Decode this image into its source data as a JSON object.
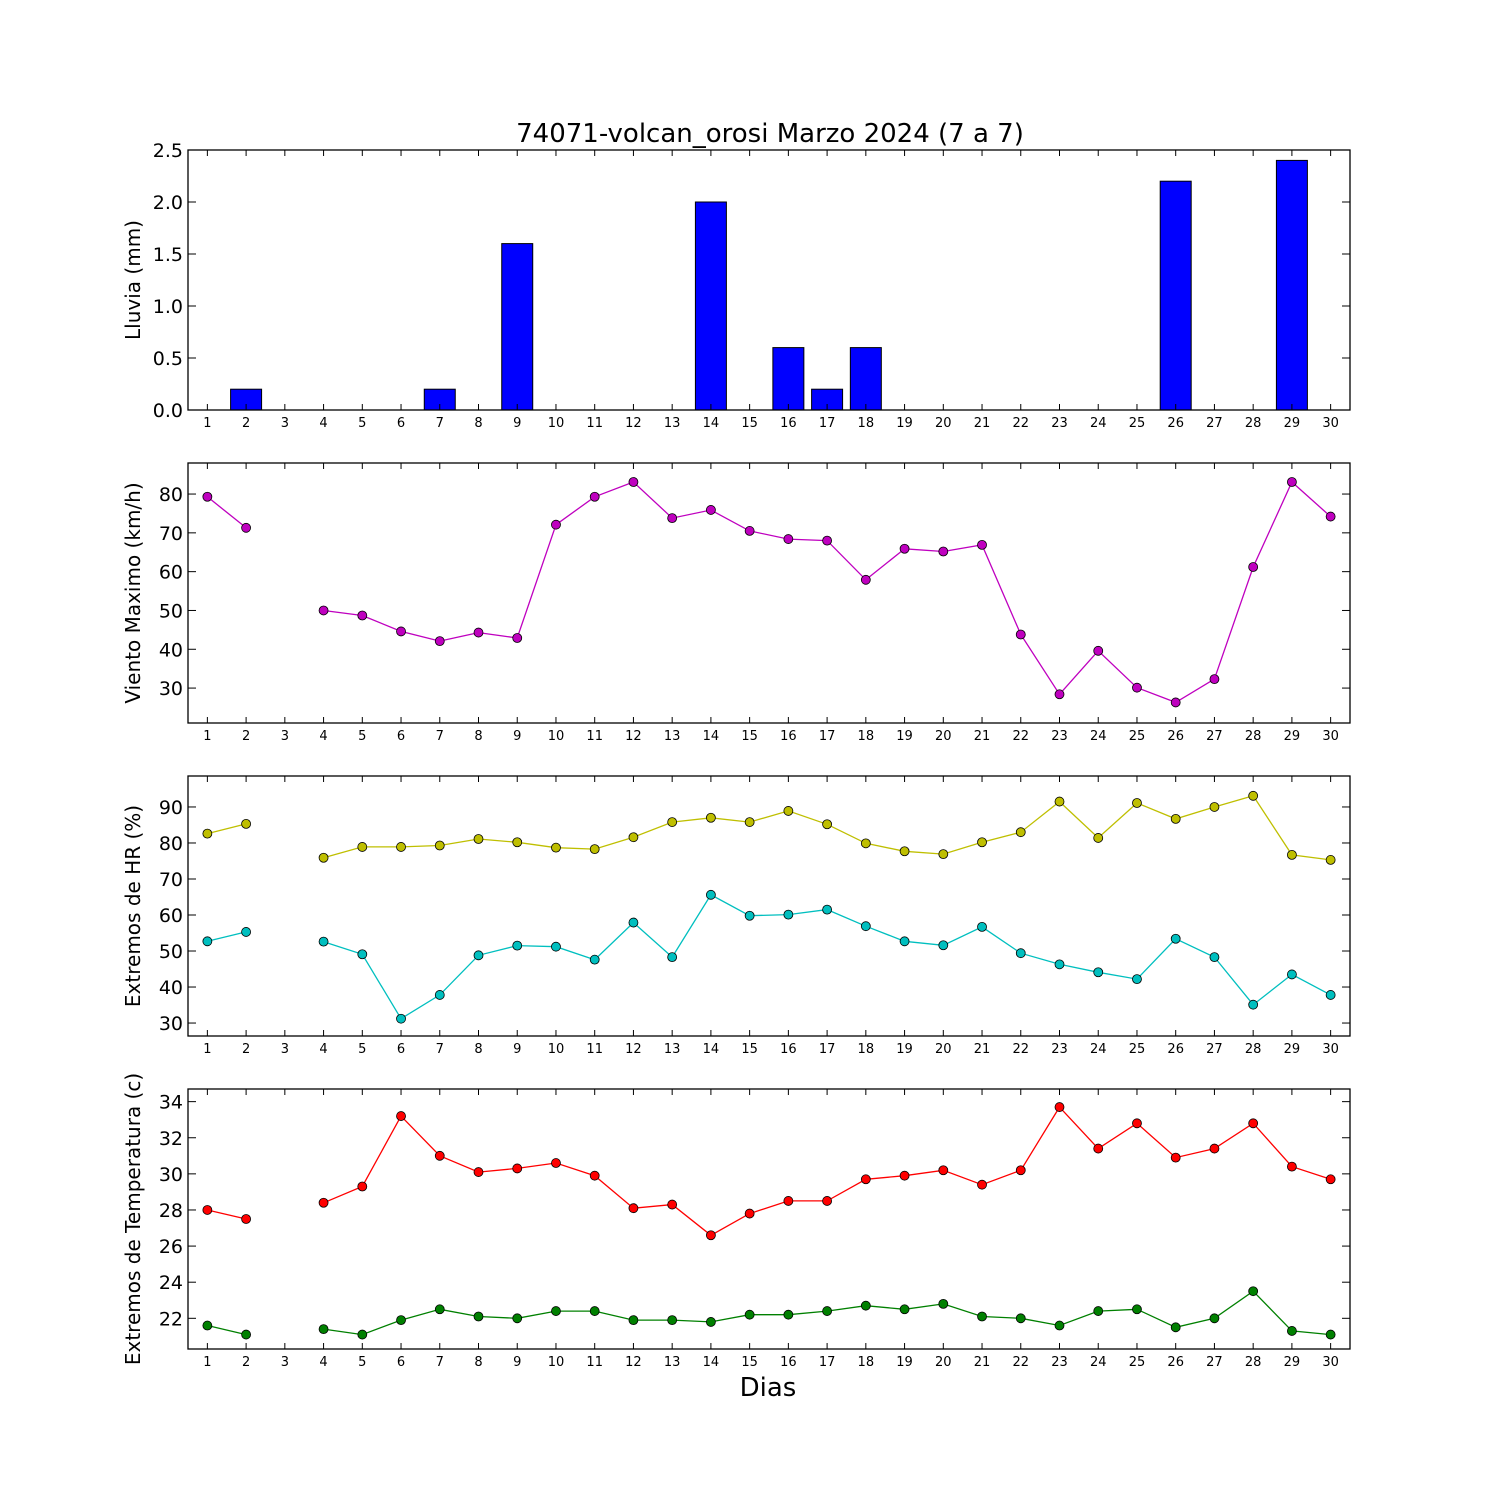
{
  "title": "74071-volcan_orosi Marzo 2024  (7 a 7)",
  "xlabel": "Dias",
  "colors": {
    "bar": "#0000ff",
    "wind": "#bf00bf",
    "hr_max": "#bfbf00",
    "hr_min": "#00bfbf",
    "t_max": "#ff0000",
    "t_min": "#008000"
  },
  "chart_data": [
    {
      "type": "bar",
      "ylabel": "Lluvia (mm)",
      "x": [
        1,
        2,
        3,
        4,
        5,
        6,
        7,
        8,
        9,
        10,
        11,
        12,
        13,
        14,
        15,
        16,
        17,
        18,
        19,
        20,
        21,
        22,
        23,
        24,
        25,
        26,
        27,
        28,
        29,
        30
      ],
      "ylim": [
        0,
        2.5
      ],
      "yticks": [
        "0.0",
        "0.5",
        "1.0",
        "1.5",
        "2.0",
        "2.5"
      ],
      "series": [
        {
          "values": [
            0,
            0.2,
            null,
            0,
            0,
            0,
            0.2,
            0,
            1.6,
            0,
            0,
            0,
            0,
            2.0,
            0,
            0.6,
            0.2,
            0.6,
            0,
            0,
            0,
            0,
            0,
            0,
            0,
            2.2,
            0,
            0,
            2.4,
            0
          ]
        }
      ]
    },
    {
      "type": "line",
      "ylabel": "Viento Maximo (km/h)",
      "x": [
        1,
        2,
        3,
        4,
        5,
        6,
        7,
        8,
        9,
        10,
        11,
        12,
        13,
        14,
        15,
        16,
        17,
        18,
        19,
        20,
        21,
        22,
        23,
        24,
        25,
        26,
        27,
        28,
        29,
        30
      ],
      "ylim": [
        21,
        88
      ],
      "yticks": [
        "30",
        "40",
        "50",
        "60",
        "70",
        "80"
      ],
      "series": [
        {
          "values": [
            79.3,
            71.3,
            null,
            50.0,
            48.7,
            44.6,
            42.1,
            44.3,
            42.9,
            72.1,
            79.3,
            83.1,
            73.8,
            75.9,
            70.5,
            68.4,
            68.0,
            57.9,
            65.9,
            65.2,
            66.9,
            43.8,
            28.4,
            39.6,
            30.1,
            26.3,
            32.3,
            61.2,
            83.1,
            74.2
          ]
        }
      ]
    },
    {
      "type": "line",
      "ylabel": "Extremos de HR (%)",
      "x": [
        1,
        2,
        3,
        4,
        5,
        6,
        7,
        8,
        9,
        10,
        11,
        12,
        13,
        14,
        15,
        16,
        17,
        18,
        19,
        20,
        21,
        22,
        23,
        24,
        25,
        26,
        27,
        28,
        29,
        30
      ],
      "ylim": [
        26.4,
        98.6
      ],
      "yticks": [
        "30",
        "40",
        "50",
        "60",
        "70",
        "80",
        "90"
      ],
      "series": [
        {
          "values": [
            82.6,
            85.3,
            null,
            75.9,
            78.9,
            78.9,
            79.3,
            81.1,
            80.2,
            78.7,
            78.3,
            81.6,
            85.8,
            87.0,
            85.8,
            88.9,
            85.2,
            79.9,
            77.7,
            76.9,
            80.2,
            83.0,
            91.5,
            81.4,
            91.1,
            86.7,
            90.0,
            93.1,
            76.7,
            75.3
          ]
        },
        {
          "values": [
            52.7,
            55.3,
            null,
            52.6,
            49.1,
            31.2,
            37.8,
            48.8,
            51.5,
            51.2,
            47.6,
            57.9,
            48.3,
            65.6,
            59.8,
            60.1,
            61.5,
            56.9,
            52.7,
            51.6,
            56.7,
            49.4,
            46.3,
            44.1,
            42.2,
            53.4,
            48.3,
            35.1,
            43.5,
            37.8
          ]
        }
      ]
    },
    {
      "type": "line",
      "ylabel": "Extremos de Temperatura (c)",
      "x": [
        1,
        2,
        3,
        4,
        5,
        6,
        7,
        8,
        9,
        10,
        11,
        12,
        13,
        14,
        15,
        16,
        17,
        18,
        19,
        20,
        21,
        22,
        23,
        24,
        25,
        26,
        27,
        28,
        29,
        30
      ],
      "ylim": [
        20.3,
        34.7
      ],
      "yticks": [
        "22",
        "24",
        "26",
        "28",
        "30",
        "32",
        "34"
      ],
      "series": [
        {
          "values": [
            28.0,
            27.5,
            null,
            28.4,
            29.3,
            33.2,
            31.0,
            30.1,
            30.3,
            30.6,
            29.9,
            28.1,
            28.3,
            26.6,
            27.8,
            28.5,
            28.5,
            29.7,
            29.9,
            30.2,
            29.4,
            30.2,
            33.7,
            31.4,
            32.8,
            30.9,
            31.4,
            32.8,
            30.4,
            29.7
          ]
        },
        {
          "values": [
            21.6,
            21.1,
            null,
            21.4,
            21.1,
            21.9,
            22.5,
            22.1,
            22.0,
            22.4,
            22.4,
            21.9,
            21.9,
            21.8,
            22.2,
            22.2,
            22.4,
            22.7,
            22.5,
            22.8,
            22.1,
            22.0,
            21.6,
            22.4,
            22.5,
            21.5,
            22.0,
            23.5,
            21.3,
            21.1
          ]
        }
      ]
    }
  ]
}
